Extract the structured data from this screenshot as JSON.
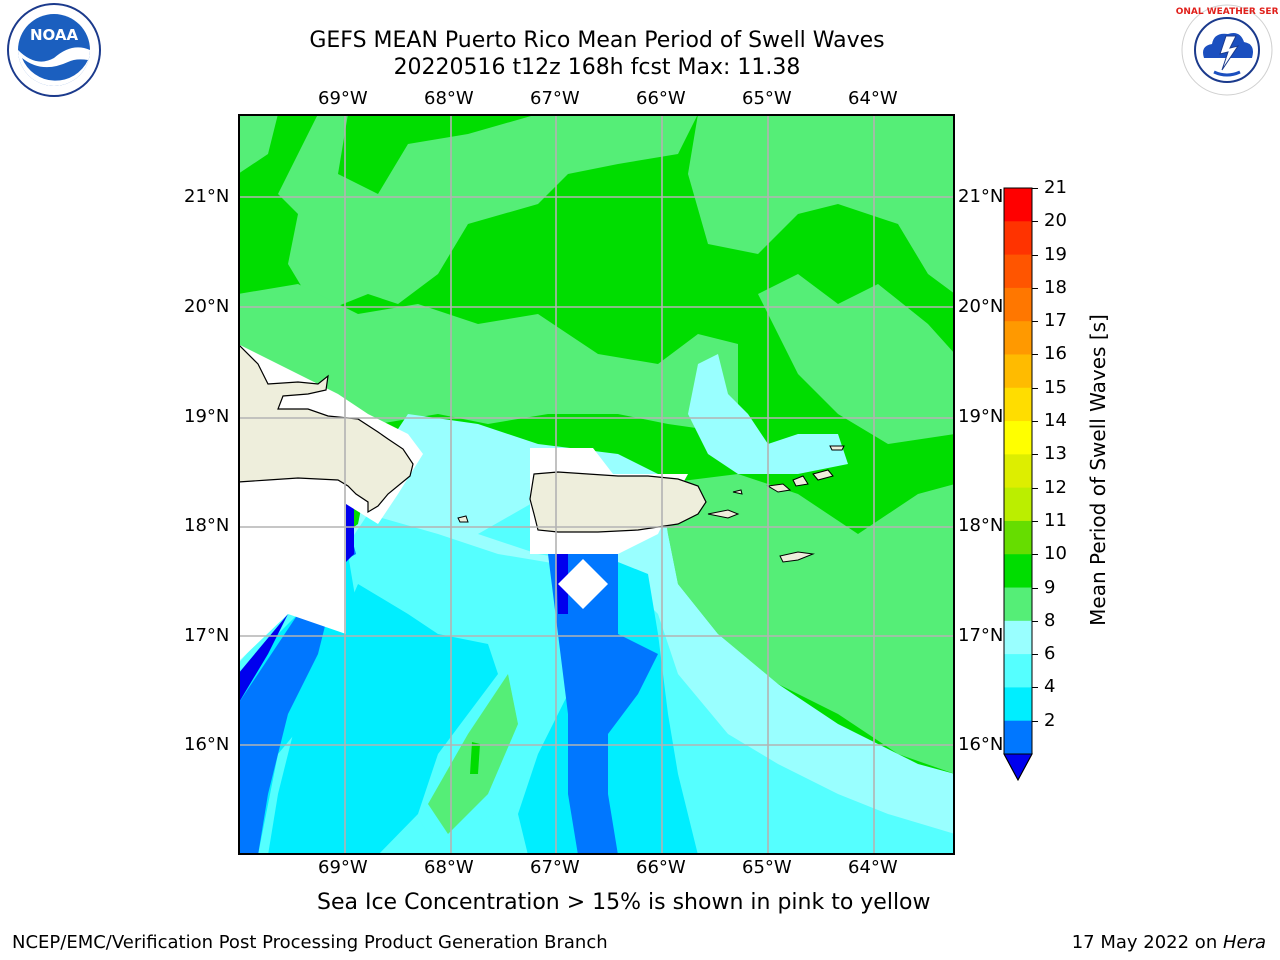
{
  "header": {
    "title_line1": "GEFS MEAN Puerto Rico Mean Period of Swell Waves",
    "title_line2": "20220516 t12z 168h fcst   Max: 11.38"
  },
  "logos": {
    "left_text": "NOAA",
    "left_ring_text": "NATIONAL OCEANIC AND ATMOSPHERIC ADMINISTRATION · U.S. DEPARTMENT OF COMMERCE",
    "right_text": "NATIONAL WEATHER SERVICE"
  },
  "map": {
    "lon_labels": [
      "69°W",
      "68°W",
      "67°W",
      "66°W",
      "65°W",
      "64°W"
    ],
    "lat_labels": [
      "21°N",
      "20°N",
      "19°N",
      "18°N",
      "17°N",
      "16°N"
    ],
    "grid": true
  },
  "colorbar": {
    "label": "Mean Period of Swell Waves [s]",
    "ticks": [
      "21",
      "20",
      "19",
      "18",
      "17",
      "16",
      "15",
      "14",
      "13",
      "12",
      "11",
      "10",
      "9",
      "8",
      "6",
      "4",
      "2"
    ],
    "colors": [
      "#ff0000",
      "#ff3300",
      "#ff5500",
      "#ff7700",
      "#ff9900",
      "#ffbb00",
      "#ffdd00",
      "#ffff00",
      "#ddee00",
      "#bbee00",
      "#66dd00",
      "#00dd00",
      "#55ee77",
      "#99ffff",
      "#55ffff",
      "#00eeff",
      "#0077ff"
    ],
    "extend_color": "#0000ee"
  },
  "caption": "Sea Ice Concentration > 15% is shown in pink to yellow",
  "footer": {
    "left": "NCEP/EMC/Verification Post Processing Product Generation Branch",
    "right_prefix": "17 May 2022 on ",
    "right_italic": "Hera"
  }
}
